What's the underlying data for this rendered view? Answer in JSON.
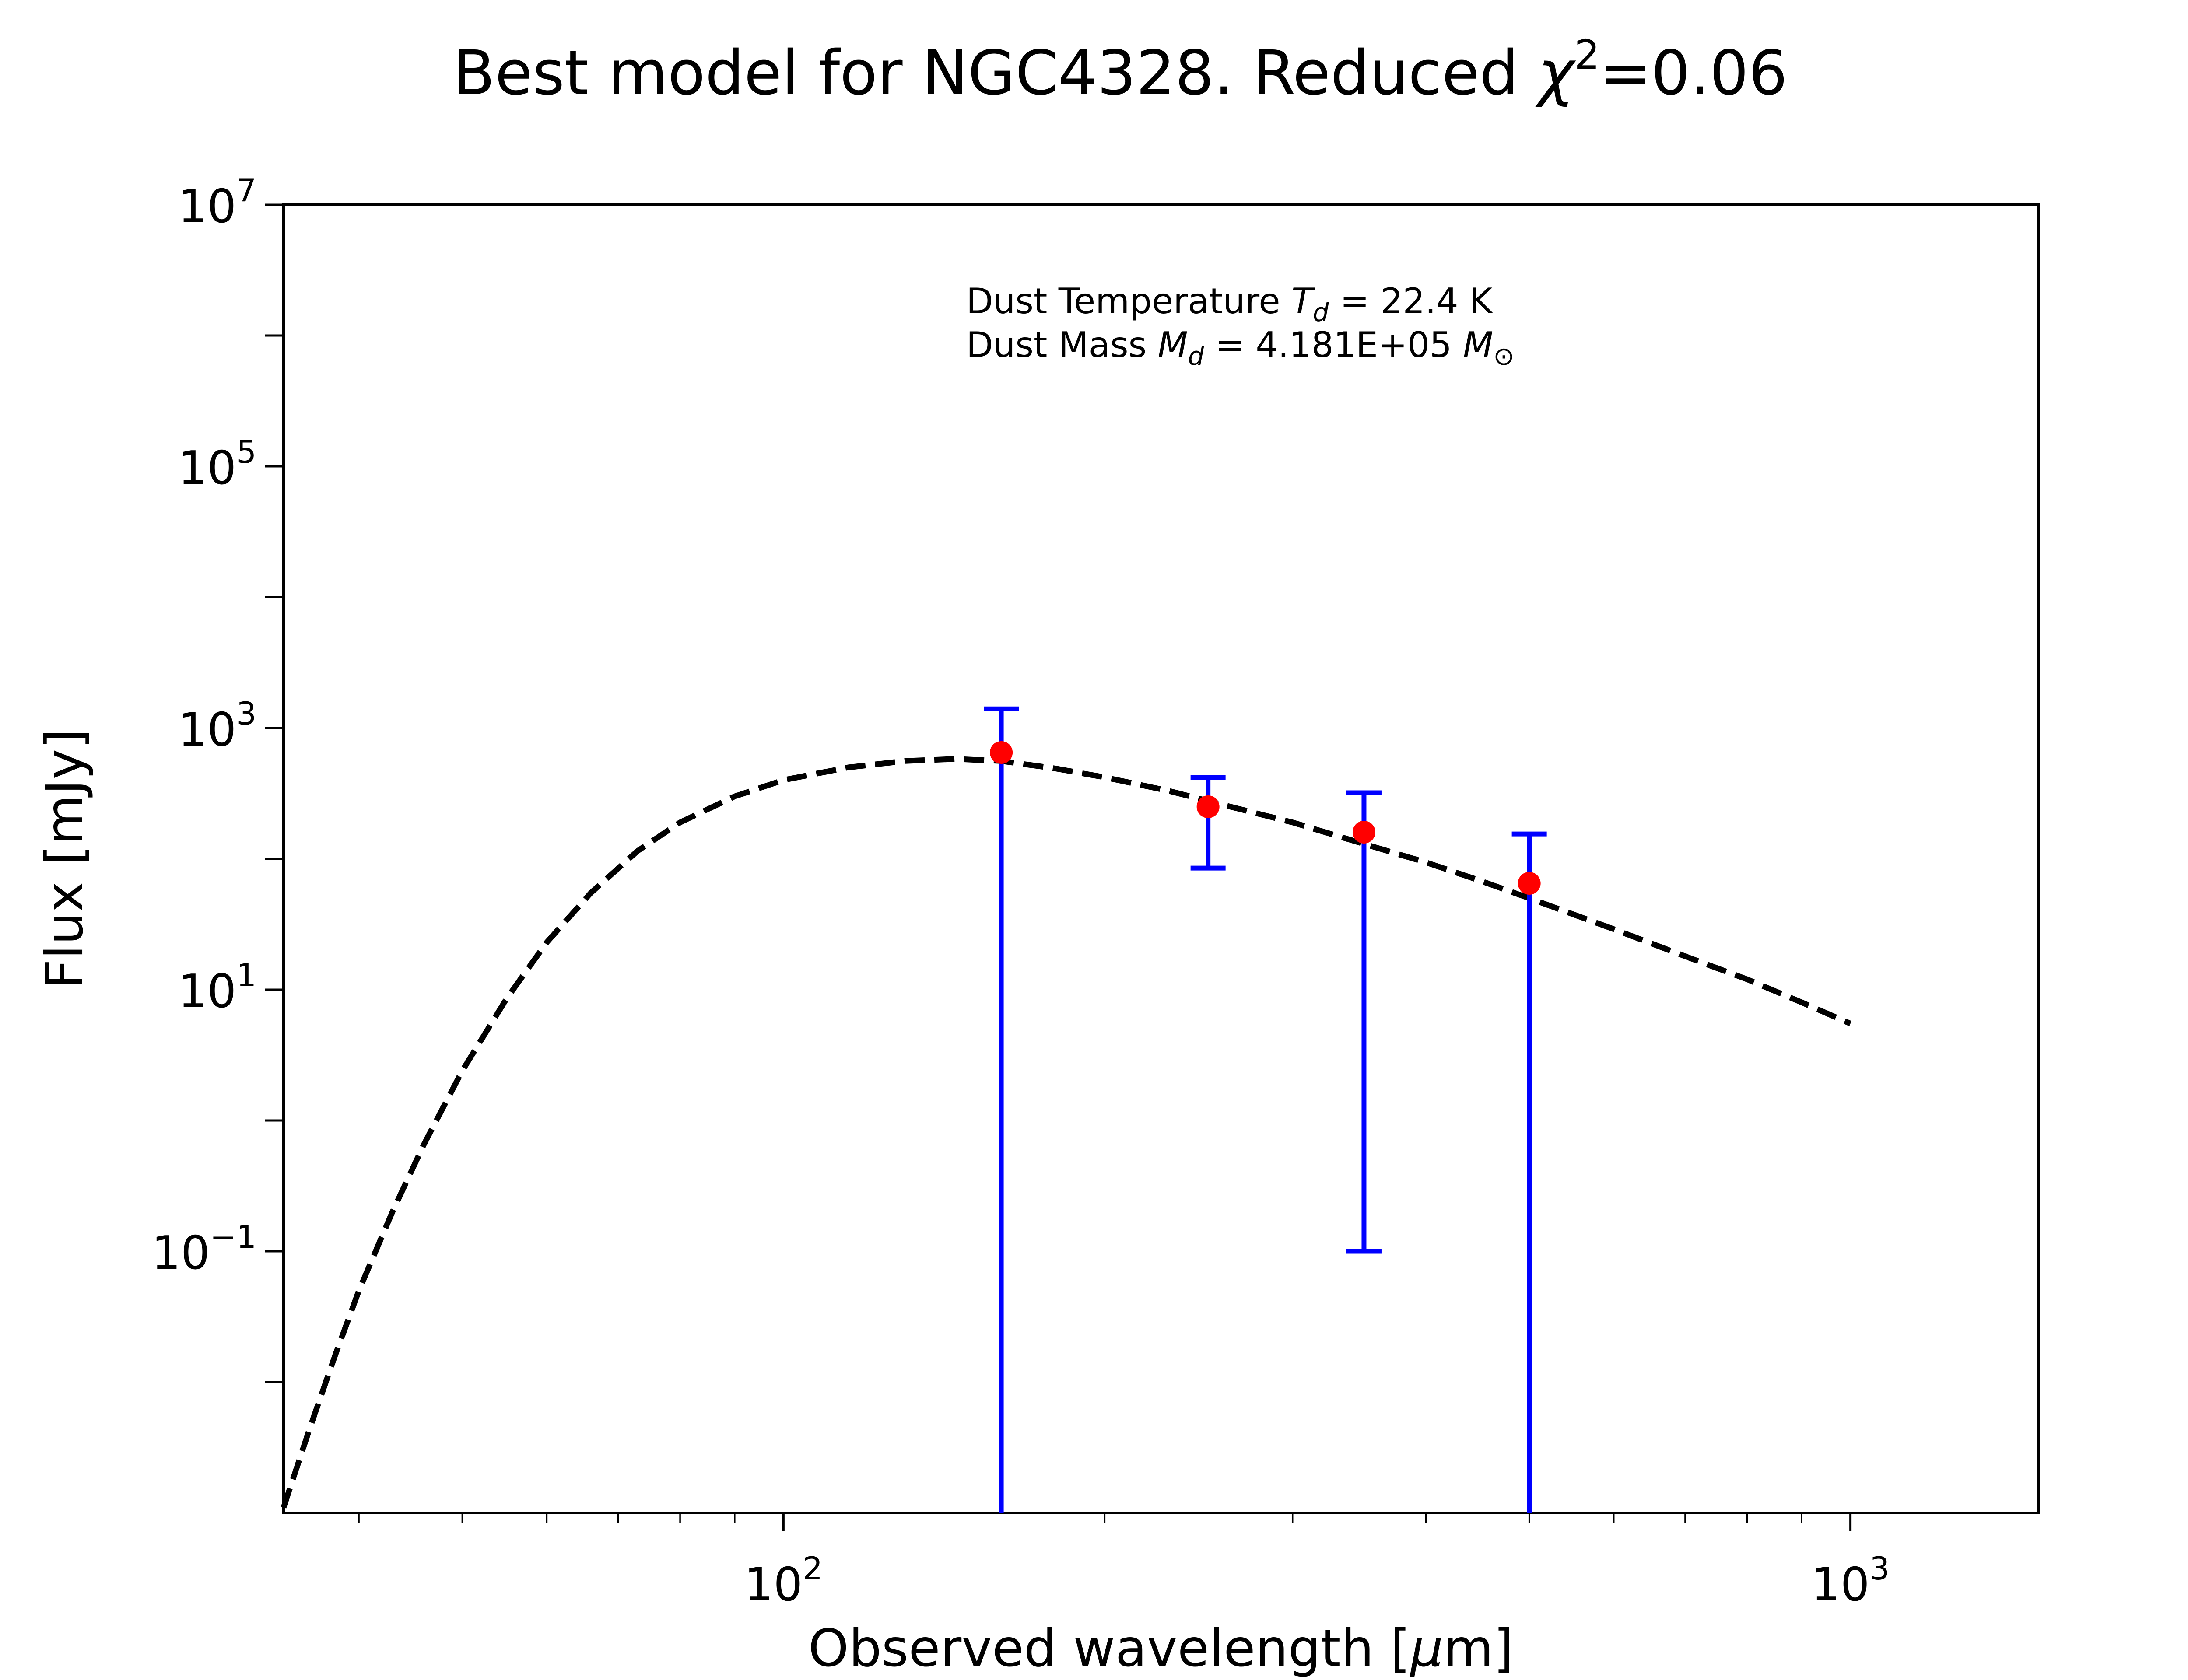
{
  "chart_data": {
    "type": "scatter",
    "title": {
      "prefix": "Best model for NGC4328. Reduced ",
      "symbol": "χ",
      "sup": "2",
      "suffix": "=0.06"
    },
    "xlabel": {
      "prefix": "Observed wavelength [",
      "mu": "μ",
      "suffix": "m]"
    },
    "ylabel": "Flux [mJy]",
    "x_scale": "log",
    "y_scale": "log",
    "xlim": [
      34,
      1500
    ],
    "ylim": [
      0.001,
      10000000
    ],
    "x_ticks": [
      {
        "base": "10",
        "exp": "2",
        "value": 100
      },
      {
        "base": "10",
        "exp": "3",
        "value": 1000
      }
    ],
    "y_ticks": [
      {
        "base": "10",
        "exp": "7",
        "value": 10000000
      },
      {
        "base": "10",
        "exp": "5",
        "value": 100000
      },
      {
        "base": "10",
        "exp": "3",
        "value": 1000
      },
      {
        "base": "10",
        "exp": "1",
        "value": 10
      },
      {
        "base": "10",
        "exp": "−1",
        "value": 0.1
      }
    ],
    "grid": false,
    "observed": {
      "marker_color": "#ff0000",
      "errorbar_color": "#0000ff",
      "points": [
        {
          "x": 160,
          "y": 650,
          "ylo": 0.001,
          "yhi": 1400
        },
        {
          "x": 250,
          "y": 250,
          "ylo": 85,
          "yhi": 420
        },
        {
          "x": 350,
          "y": 160,
          "ylo": 0.1,
          "yhi": 320
        },
        {
          "x": 500,
          "y": 65,
          "ylo": 0.001,
          "yhi": 155
        }
      ]
    },
    "model": {
      "style": "dashed",
      "color": "#000000",
      "x": [
        34,
        36,
        38,
        40,
        43,
        46,
        50,
        55,
        60,
        66,
        73,
        80,
        90,
        100,
        115,
        130,
        145,
        160,
        180,
        200,
        230,
        260,
        300,
        350,
        400,
        450,
        500,
        600,
        700,
        800,
        900,
        1000
      ],
      "y": [
        0.0011,
        0.0045,
        0.016,
        0.05,
        0.2,
        0.65,
        2.4,
        8.5,
        23,
        55,
        115,
        190,
        300,
        400,
        500,
        560,
        580,
        560,
        490,
        420,
        330,
        255,
        190,
        130,
        94,
        68,
        50,
        29,
        18,
        12,
        8,
        5.5
      ]
    },
    "annotation": {
      "line1": {
        "prefix": "Dust Temperature ",
        "sym": "T",
        "sub": "d",
        "suffix": " = 22.4 K"
      },
      "line2": {
        "prefix": "Dust Mass ",
        "sym": "M",
        "sub": "d",
        "mid": " = 4.181E+05 ",
        "sym2": "M",
        "sub2": "⊙"
      }
    }
  }
}
